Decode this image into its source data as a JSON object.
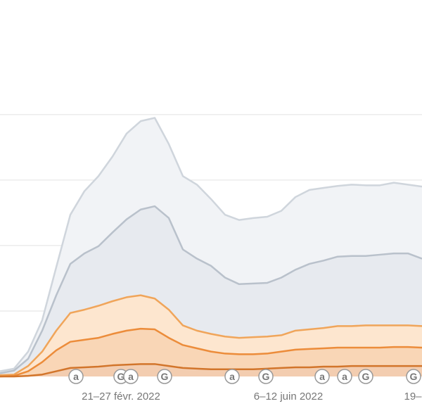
{
  "chart_data": {
    "type": "area",
    "x": [
      0,
      1,
      2,
      3,
      4,
      5,
      6,
      7,
      8,
      9,
      10,
      11,
      12,
      13,
      14,
      15,
      16,
      17,
      18,
      19,
      20,
      21,
      22,
      23,
      24,
      25,
      26,
      27,
      28,
      29,
      30
    ],
    "xlim": [
      0,
      30
    ],
    "ylim": [
      0,
      575
    ],
    "grid_lines": [
      100,
      200,
      300,
      400
    ],
    "xticks": [
      {
        "value": 8.6,
        "label": "21–27 févr. 2022"
      },
      {
        "value": 20.5,
        "label": "6–12 juin 2022"
      },
      {
        "value": 29.35,
        "label": "19–"
      }
    ],
    "series": [
      {
        "color": "#cfd5dc",
        "fill": "#f1f3f6",
        "values": [
          8,
          12,
          38,
          86,
          167,
          247,
          283,
          306,
          336,
          371,
          390,
          395,
          355,
          306,
          293,
          271,
          247,
          239,
          242,
          244,
          253,
          274,
          285,
          288,
          291,
          293,
          292,
          292,
          296,
          293,
          290
        ]
      },
      {
        "color": "#b9c1cb",
        "fill": "#e7eaef",
        "values": [
          5,
          9,
          27,
          70,
          124,
          172,
          188,
          199,
          220,
          240,
          255,
          260,
          242,
          194,
          180,
          169,
          151,
          141,
          142,
          143,
          151,
          163,
          172,
          177,
          183,
          184,
          184,
          186,
          188,
          188,
          180
        ]
      },
      {
        "color": "#f0a55a",
        "fill": "#fde6cf",
        "values": [
          2,
          3,
          16,
          38,
          70,
          97,
          102,
          108,
          115,
          121,
          124,
          119,
          102,
          78,
          70,
          65,
          61,
          59,
          60,
          61,
          63,
          70,
          72,
          74,
          77,
          77,
          78,
          78,
          78,
          78,
          77
        ]
      },
      {
        "color": "#ec8c3a",
        "fill": "#f9d6b6",
        "values": [
          0,
          1,
          8,
          22,
          40,
          53,
          56,
          59,
          65,
          70,
          73,
          72,
          59,
          48,
          43,
          38,
          35,
          34,
          34,
          35,
          38,
          41,
          42,
          43,
          44,
          44,
          44,
          44,
          45,
          45,
          44
        ]
      },
      {
        "color": "#d2752b",
        "fill": "#f3cdb0",
        "values": [
          0,
          0,
          1,
          3,
          8,
          13,
          14,
          15,
          17,
          18,
          19,
          19,
          16,
          13,
          12,
          11,
          11,
          11,
          11,
          12,
          13,
          14,
          14,
          15,
          15,
          16,
          16,
          16,
          16,
          16,
          16
        ]
      }
    ],
    "annotations": [
      {
        "x": 5.4,
        "label": "a"
      },
      {
        "x": 8.6,
        "label": "G"
      },
      {
        "x": 9.3,
        "label": "a"
      },
      {
        "x": 11.7,
        "label": "G"
      },
      {
        "x": 16.5,
        "label": "a"
      },
      {
        "x": 18.9,
        "label": "G"
      },
      {
        "x": 22.9,
        "label": "a"
      },
      {
        "x": 24.5,
        "label": "a"
      },
      {
        "x": 26,
        "label": "G"
      },
      {
        "x": 29.4,
        "label": "G"
      }
    ]
  }
}
